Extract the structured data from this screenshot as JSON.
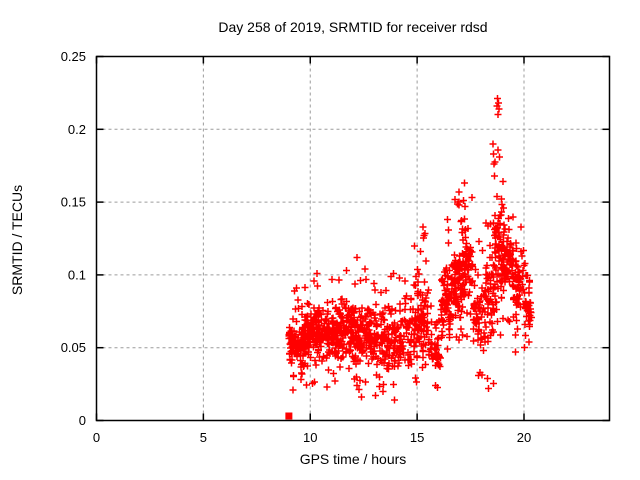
{
  "chart_data": {
    "type": "scatter",
    "title": "Day 258 of 2019, SRMTID for receiver rdsd",
    "xlabel": "GPS time / hours",
    "ylabel": "SRMTID / TECUs",
    "xlim": [
      0,
      24
    ],
    "ylim": [
      0,
      0.25
    ],
    "xticks": {
      "values": [
        0,
        5,
        10,
        15,
        20
      ],
      "labels": [
        "0",
        "5",
        "10",
        "15",
        "20"
      ]
    },
    "yticks": {
      "values": [
        0,
        0.05,
        0.1,
        0.15,
        0.2,
        0.25
      ],
      "labels": [
        "0",
        "0.05",
        "0.1",
        "0.15",
        "0.2",
        "0.25"
      ]
    },
    "grid": true,
    "grid_style": "dashed",
    "grid_color": "#9c9c9c",
    "axis_color": "#000000",
    "background": "#ffffff",
    "marker": "+",
    "marker_color": "#ff0000",
    "marker_size_px": 7,
    "legend": "none",
    "data_time_range_hours": [
      9.0,
      20.35
    ],
    "zero_point": {
      "x": 9.0,
      "y": 0.0,
      "marker": "filled-square",
      "note": "solid red square sitting on the x-axis"
    },
    "segment_format": [
      "t_start",
      "t_end",
      "n_core",
      "core_y_min",
      "core_y_max",
      "n_tail",
      "tail_y_min",
      "tail_y_max"
    ],
    "scatter_segments": [
      [
        9.0,
        9.5,
        55,
        0.035,
        0.07,
        12,
        0.02,
        0.09
      ],
      [
        9.5,
        10.0,
        65,
        0.035,
        0.075,
        14,
        0.022,
        0.095
      ],
      [
        10.0,
        10.6,
        75,
        0.04,
        0.08,
        15,
        0.025,
        0.1
      ],
      [
        10.6,
        11.3,
        75,
        0.04,
        0.08,
        15,
        0.02,
        0.098
      ],
      [
        11.3,
        12.0,
        75,
        0.04,
        0.085,
        15,
        0.025,
        0.105
      ],
      [
        12.0,
        12.6,
        65,
        0.038,
        0.08,
        14,
        0.015,
        0.1
      ],
      [
        12.6,
        13.4,
        75,
        0.035,
        0.08,
        15,
        0.02,
        0.095
      ],
      [
        13.4,
        14.2,
        75,
        0.03,
        0.08,
        16,
        0.012,
        0.1
      ],
      [
        14.2,
        15.0,
        65,
        0.035,
        0.085,
        14,
        0.02,
        0.112
      ],
      [
        15.0,
        15.5,
        55,
        0.04,
        0.1,
        12,
        0.03,
        0.13
      ],
      [
        15.5,
        16.1,
        35,
        0.03,
        0.07,
        10,
        0.022,
        0.09
      ],
      [
        16.1,
        16.6,
        55,
        0.055,
        0.105,
        12,
        0.04,
        0.128
      ],
      [
        16.6,
        17.1,
        65,
        0.065,
        0.12,
        14,
        0.05,
        0.152
      ],
      [
        17.1,
        17.6,
        55,
        0.07,
        0.14,
        12,
        0.05,
        0.16
      ],
      [
        17.6,
        18.2,
        45,
        0.045,
        0.1,
        12,
        0.03,
        0.128
      ],
      [
        18.2,
        18.6,
        45,
        0.05,
        0.12,
        12,
        0.02,
        0.15
      ],
      [
        18.6,
        19.0,
        60,
        0.07,
        0.16,
        14,
        0.045,
        0.188
      ],
      [
        19.0,
        19.5,
        55,
        0.08,
        0.135,
        12,
        0.06,
        0.155
      ],
      [
        19.5,
        20.0,
        45,
        0.07,
        0.12,
        10,
        0.05,
        0.134
      ],
      [
        20.0,
        20.35,
        25,
        0.05,
        0.1,
        8,
        0.045,
        0.112
      ]
    ],
    "notable_points": [
      [
        18.76,
        0.221
      ],
      [
        18.8,
        0.218
      ],
      [
        18.83,
        0.214
      ],
      [
        18.78,
        0.21
      ],
      [
        18.74,
        0.216
      ],
      [
        18.55,
        0.19
      ],
      [
        18.57,
        0.183
      ],
      [
        18.6,
        0.176
      ],
      [
        18.63,
        0.168
      ],
      [
        19.02,
        0.164
      ],
      [
        17.22,
        0.163
      ],
      [
        17.18,
        0.151
      ],
      [
        17.25,
        0.147
      ],
      [
        16.95,
        0.157
      ],
      [
        16.42,
        0.138
      ],
      [
        16.47,
        0.131
      ],
      [
        15.28,
        0.133
      ],
      [
        15.31,
        0.127
      ],
      [
        14.88,
        0.12
      ],
      [
        12.18,
        0.112
      ],
      [
        12.55,
        0.104
      ],
      [
        13.9,
        0.101
      ],
      [
        10.32,
        0.101
      ],
      [
        11.02,
        0.097
      ],
      [
        9.35,
        0.091
      ],
      [
        19.85,
        0.133
      ],
      [
        20.05,
        0.108
      ],
      [
        18.35,
        0.022
      ],
      [
        18.3,
        0.029
      ],
      [
        17.95,
        0.033
      ],
      [
        13.95,
        0.014
      ],
      [
        13.05,
        0.017
      ],
      [
        12.4,
        0.016
      ],
      [
        15.85,
        0.024
      ],
      [
        9.2,
        0.021
      ],
      [
        19.6,
        0.047
      ]
    ],
    "seed": 42
  }
}
